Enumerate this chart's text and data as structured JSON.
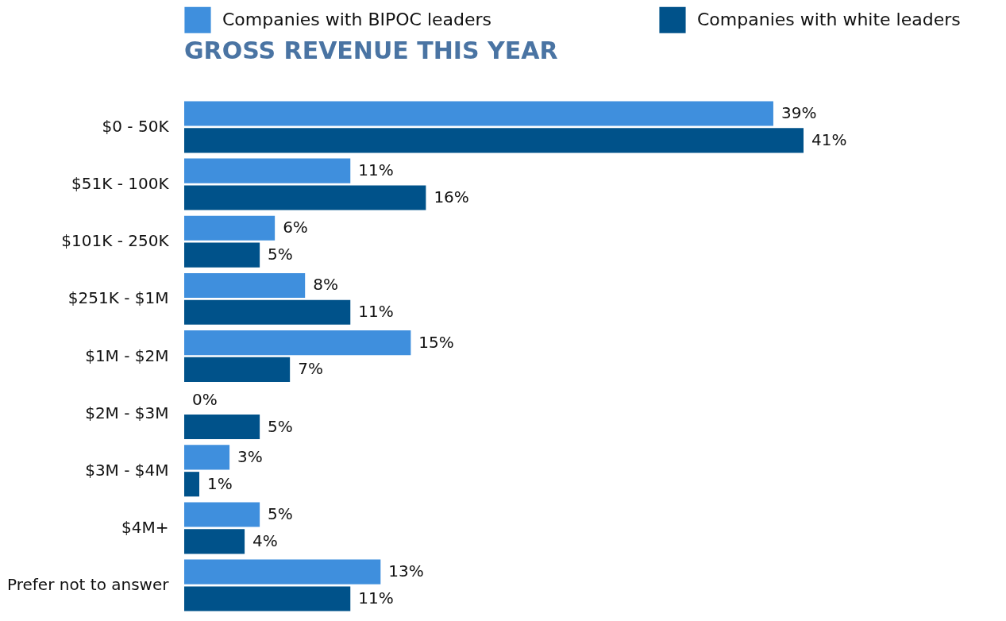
{
  "chart_data": {
    "type": "bar",
    "orientation": "horizontal",
    "title": "GROSS REVENUE THIS YEAR",
    "categories": [
      "$0 - 50K",
      "$51K - 100K",
      "$101K - 250K",
      "$251K - $1M",
      "$1M - $2M",
      "$2M - $3M",
      "$3M - $4M",
      "$4M+",
      "Prefer not to answer"
    ],
    "series": [
      {
        "name": "Companies with BIPOC leaders",
        "color": "#3f8fdd",
        "values": [
          39,
          11,
          6,
          8,
          15,
          0,
          3,
          5,
          13
        ],
        "value_labels": [
          "39%",
          "11%",
          "6%",
          "8%",
          "15%",
          "0%",
          "3%",
          "5%",
          "13%"
        ]
      },
      {
        "name": "Companies with white leaders",
        "color": "#00528a",
        "values": [
          41,
          16,
          5,
          11,
          7,
          5,
          1,
          4,
          11
        ],
        "value_labels": [
          "41%",
          "16%",
          "5%",
          "11%",
          "7%",
          "5%",
          "1%",
          "4%",
          "11%"
        ]
      }
    ],
    "legend": "top"
  }
}
